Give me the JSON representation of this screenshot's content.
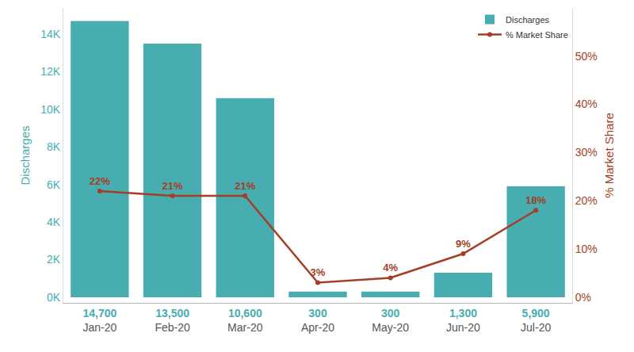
{
  "chart_data": {
    "type": "bar",
    "categories": [
      "Jan-20",
      "Feb-20",
      "Mar-20",
      "Apr-20",
      "May-20",
      "Jun-20",
      "Jul-20"
    ],
    "ylabel": "Discharges",
    "y2label": "% Market Share",
    "ylim": [
      -300,
      15400
    ],
    "yticks": [
      {
        "value": 0,
        "label": "0K"
      },
      {
        "value": 2000,
        "label": "2K"
      },
      {
        "value": 4000,
        "label": "4K"
      },
      {
        "value": 6000,
        "label": "6K"
      },
      {
        "value": 8000,
        "label": "8K"
      },
      {
        "value": 10000,
        "label": "10K"
      },
      {
        "value": 12000,
        "label": "12K"
      },
      {
        "value": 14000,
        "label": "14K"
      }
    ],
    "y2lim": [
      -1.2,
      60
    ],
    "y2ticks": [
      {
        "value": 0,
        "label": "0%"
      },
      {
        "value": 10,
        "label": "10%"
      },
      {
        "value": 20,
        "label": "20%"
      },
      {
        "value": 30,
        "label": "30%"
      },
      {
        "value": 40,
        "label": "40%"
      },
      {
        "value": 50,
        "label": "50%"
      }
    ],
    "grid": false,
    "legend": "top right",
    "data_labels": true,
    "series": [
      {
        "name": "Discharges",
        "type": "bar",
        "axis": "y",
        "color": "#48adb0",
        "values": [
          14700,
          13500,
          10600,
          300,
          300,
          1300,
          5900
        ],
        "value_labels": [
          "14,700",
          "13,500",
          "10,600",
          "300",
          "300",
          "1,300",
          "5,900"
        ]
      },
      {
        "name": "% Market Share",
        "type": "line",
        "axis": "y2",
        "color": "#a33f27",
        "marker": "circle",
        "values": [
          22,
          21,
          21,
          3,
          4,
          9,
          18
        ],
        "value_labels": [
          "22%",
          "21%",
          "21%",
          "3%",
          "4%",
          "9%",
          "18%"
        ]
      }
    ]
  }
}
